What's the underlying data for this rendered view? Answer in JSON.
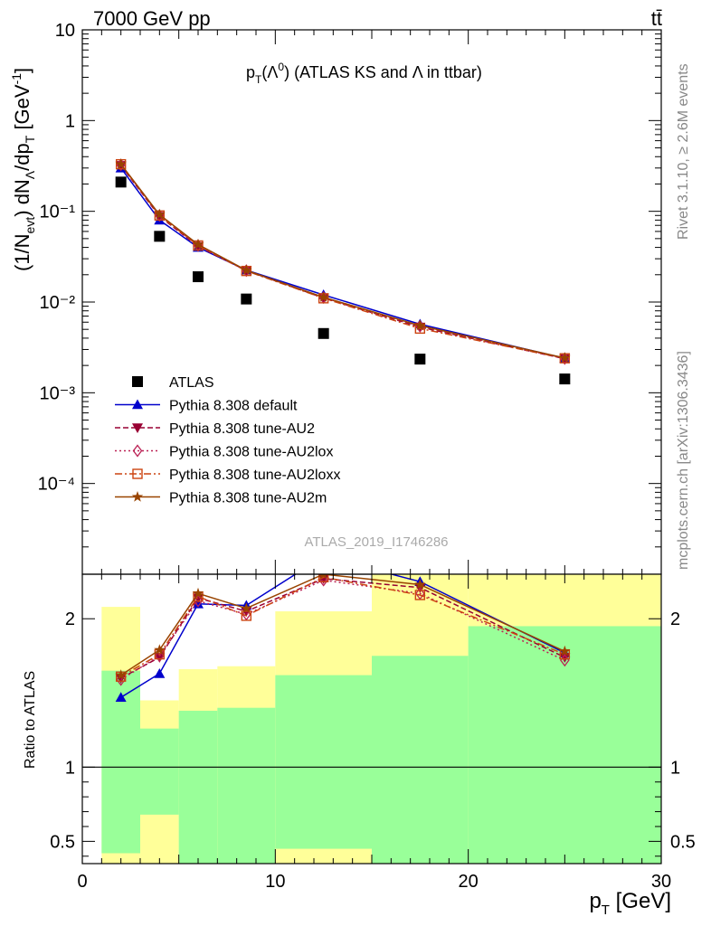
{
  "header": {
    "left": "7000 GeV pp",
    "right": "tt̄"
  },
  "side_labels": {
    "rivet": "Rivet 3.1.10, ≥ 2.6M events",
    "mcplots": "mcplots.cern.ch [arXiv:1306.3436]"
  },
  "chart_data": [
    {
      "type": "scatter",
      "panel": "main",
      "title_parts": {
        "p": "p",
        "sub": "T",
        "lpar": "(Λ",
        "sup": "0",
        "rest": ") (ATLAS KS and Λ in ttbar)"
      },
      "watermark": "ATLAS_2019_I1746286",
      "ylabel_parts": {
        "a": "(1/N",
        "sub_evt": "evt",
        "b": ") dN",
        "sub_lambda": "Λ",
        "c": "/dp",
        "sub_t": "T",
        "d": " [GeV",
        "sup": "-1",
        "e": "]"
      },
      "yscale": "log",
      "ylim": [
        1e-05,
        10
      ],
      "xlim": [
        0,
        30
      ],
      "y_tick_labels": [
        "10",
        "1",
        "10⁻¹",
        "10⁻²",
        "10⁻³",
        "10⁻⁴"
      ],
      "x": [
        2,
        4,
        6,
        8.5,
        12.5,
        17.5,
        25
      ],
      "series": [
        {
          "name": "ATLAS",
          "color": "#000000",
          "marker": "square",
          "line": "none",
          "values": [
            0.21,
            0.053,
            0.019,
            0.0108,
            0.0045,
            0.00235,
            0.00142
          ]
        },
        {
          "name": "Pythia 8.308 default",
          "color": "#0000cc",
          "marker": "triangle-up",
          "line": "solid",
          "values": [
            0.3,
            0.08,
            0.04,
            0.0225,
            0.012,
            0.0057,
            0.0024
          ]
        },
        {
          "name": "Pythia 8.308 tune-AU2",
          "color": "#990033",
          "marker": "triangle-down",
          "line": "dashed",
          "values": [
            0.32,
            0.088,
            0.041,
            0.0222,
            0.0111,
            0.0053,
            0.00237
          ]
        },
        {
          "name": "Pythia 8.308 tune-AU2lox",
          "color": "#bb2255",
          "marker": "diamond-open",
          "line": "dotted",
          "values": [
            0.325,
            0.09,
            0.042,
            0.0222,
            0.0112,
            0.0054,
            0.00238
          ]
        },
        {
          "name": "Pythia 8.308 tune-AU2loxx",
          "color": "#cc4411",
          "marker": "square-open",
          "line": "dashdot",
          "values": [
            0.33,
            0.09,
            0.042,
            0.022,
            0.011,
            0.0051,
            0.0024
          ]
        },
        {
          "name": "Pythia 8.308 tune-AU2m",
          "color": "#994400",
          "marker": "star",
          "line": "solid",
          "values": [
            0.33,
            0.092,
            0.043,
            0.0224,
            0.0113,
            0.0055,
            0.00242
          ]
        }
      ]
    },
    {
      "type": "line",
      "panel": "ratio",
      "ylabel": "Ratio to ATLAS",
      "xlabel_parts": {
        "p": "p",
        "sub": "T",
        "rest": " [GeV]"
      },
      "ylim": [
        0.35,
        2.3
      ],
      "xlim": [
        0,
        30
      ],
      "x_ticks": [
        0,
        10,
        20,
        30
      ],
      "x_tick_labels": [
        "0",
        "10",
        "20",
        "30"
      ],
      "y_ticks": [
        0.5,
        1,
        2
      ],
      "y_tick_labels": [
        "0.5",
        "1",
        "2"
      ],
      "bands": [
        {
          "x0": 1,
          "x1": 3,
          "green": [
            0.42,
            1.65
          ],
          "yellow": [
            0.35,
            2.08
          ]
        },
        {
          "x0": 3,
          "x1": 5,
          "green": [
            0.68,
            1.26
          ],
          "yellow": [
            0.35,
            1.45
          ]
        },
        {
          "x0": 5,
          "x1": 7,
          "green": [
            0.35,
            1.38
          ],
          "yellow": [
            0.35,
            1.66
          ]
        },
        {
          "x0": 7,
          "x1": 10,
          "green": [
            0.35,
            1.4
          ],
          "yellow": [
            0.35,
            1.68
          ]
        },
        {
          "x0": 10,
          "x1": 15,
          "green": [
            0.45,
            1.62
          ],
          "yellow": [
            0.35,
            2.05
          ]
        },
        {
          "x0": 15,
          "x1": 20,
          "green": [
            0.35,
            1.75
          ],
          "yellow": [
            0.35,
            2.3
          ]
        },
        {
          "x0": 20,
          "x1": 30,
          "green": [
            0.35,
            1.95
          ],
          "yellow": [
            0.35,
            2.3
          ]
        }
      ],
      "x": [
        2,
        4,
        6,
        8.5,
        12.5,
        17.5,
        25
      ],
      "series": [
        {
          "name": "Pythia 8.308 default",
          "values": [
            1.47,
            1.63,
            2.1,
            2.09,
            2.42,
            2.25,
            1.77
          ]
        },
        {
          "name": "Pythia 8.308 tune-AU2",
          "values": [
            1.6,
            1.74,
            2.14,
            2.05,
            2.27,
            2.21,
            1.74
          ]
        },
        {
          "name": "Pythia 8.308 tune-AU2lox",
          "values": [
            1.59,
            1.75,
            2.12,
            2.03,
            2.26,
            2.17,
            1.72
          ]
        },
        {
          "name": "Pythia 8.308 tune-AU2loxx",
          "values": [
            1.61,
            1.76,
            2.15,
            2.02,
            2.28,
            2.16,
            1.76
          ]
        },
        {
          "name": "Pythia 8.308 tune-AU2m",
          "values": [
            1.62,
            1.79,
            2.17,
            2.07,
            2.3,
            2.23,
            1.78
          ]
        }
      ]
    }
  ]
}
